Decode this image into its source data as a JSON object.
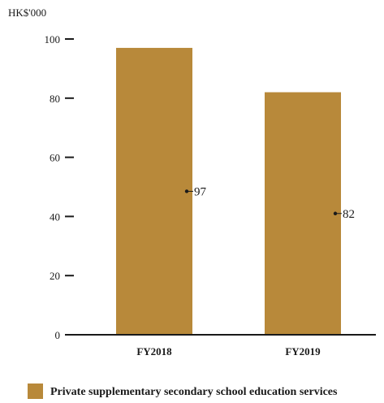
{
  "chart_data": {
    "type": "bar",
    "unit_label": "HK$'000",
    "categories": [
      "FY2018",
      "FY2019"
    ],
    "series": [
      {
        "name": "Private supplementary secondary school education services",
        "color": "#b8893a",
        "values": [
          97,
          82
        ]
      }
    ],
    "yticks": [
      "0",
      "20",
      "40",
      "60",
      "80",
      "100"
    ],
    "ylim": [
      0,
      100
    ],
    "grid": false,
    "legend_position": "bottom-left",
    "xlabel": "",
    "ylabel": ""
  }
}
